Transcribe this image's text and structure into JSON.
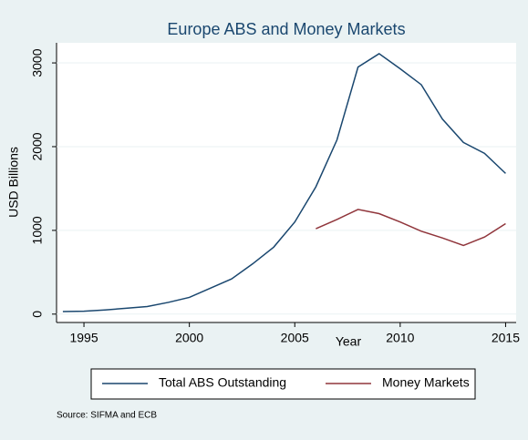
{
  "chart_data": {
    "type": "line",
    "title": "Europe ABS and Money Markets",
    "xlabel": "Year",
    "ylabel": "USD Billions",
    "x": [
      1994,
      1995,
      1996,
      1997,
      1998,
      1999,
      2000,
      2001,
      2002,
      2003,
      2004,
      2005,
      2006,
      2007,
      2008,
      2009,
      2010,
      2011,
      2012,
      2013,
      2014,
      2015
    ],
    "series": [
      {
        "name": "Total ABS Outstanding",
        "color": "#1a476f",
        "values": [
          30,
          35,
          50,
          70,
          90,
          140,
          200,
          310,
          420,
          600,
          800,
          1100,
          1520,
          2080,
          2950,
          3110,
          2930,
          2740,
          2330,
          2050,
          1920,
          1680
        ]
      },
      {
        "name": "Money Markets",
        "color": "#90353b",
        "values": [
          null,
          null,
          null,
          null,
          null,
          null,
          null,
          null,
          null,
          null,
          null,
          null,
          1020,
          1130,
          1250,
          1200,
          1100,
          990,
          910,
          820,
          920,
          1080
        ]
      }
    ],
    "xlim": [
      1993.7,
      2015.5
    ],
    "xticks": [
      1995,
      2000,
      2005,
      2010,
      2015
    ],
    "ylim": [
      -100,
      3240
    ],
    "yticks": [
      0,
      1000,
      2000,
      3000
    ],
    "legend": "bottom",
    "note": "Source: SIFMA and ECB"
  }
}
